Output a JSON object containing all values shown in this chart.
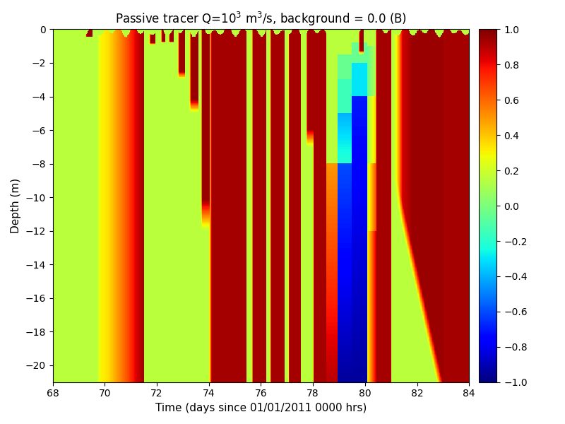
{
  "title": "Passive tracer Q=10$^{3}$ m$^{3}$/s, background = 0.0 (B)",
  "xlabel": "Time (days since 01/01/2011 0000 hrs)",
  "ylabel": "Depth (m)",
  "xlim": [
    68,
    84
  ],
  "ylim": [
    -21,
    0
  ],
  "xticks": [
    68,
    70,
    72,
    74,
    76,
    78,
    80,
    82,
    84
  ],
  "yticks": [
    0,
    -2,
    -4,
    -6,
    -8,
    -10,
    -12,
    -14,
    -16,
    -18,
    -20
  ],
  "clim": [
    -1,
    1
  ],
  "colorbar_ticks": [
    1,
    0.8,
    0.6,
    0.4,
    0.2,
    0,
    -0.2,
    -0.4,
    -0.6,
    -0.8,
    -1
  ],
  "t_start": 68,
  "t_end": 84,
  "depth_min": -21,
  "depth_max": 0,
  "figsize": [
    8.0,
    6.0
  ],
  "dpi": 100
}
